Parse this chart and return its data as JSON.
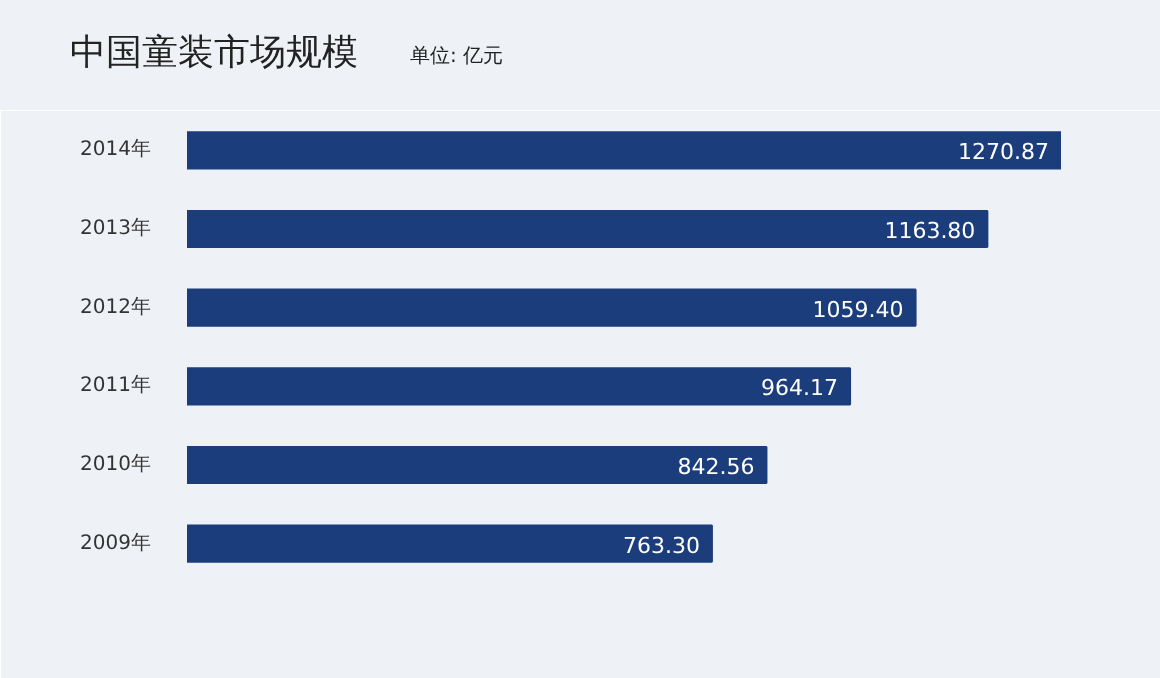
{
  "chart_data": {
    "type": "bar",
    "orientation": "horizontal",
    "title": "中国童装市场规模",
    "subtitle": "单位: 亿元",
    "categories": [
      "2014年",
      "2013年",
      "2012年",
      "2011年",
      "2010年",
      "2009年"
    ],
    "values": [
      1270.87,
      1163.8,
      1059.4,
      964.17,
      842.56,
      763.3
    ],
    "value_labels": [
      "1270.87",
      "1163.80",
      "1059.40",
      "964.17",
      "842.56",
      "763.30"
    ],
    "color": "#1b3d7c",
    "grid": false
  }
}
